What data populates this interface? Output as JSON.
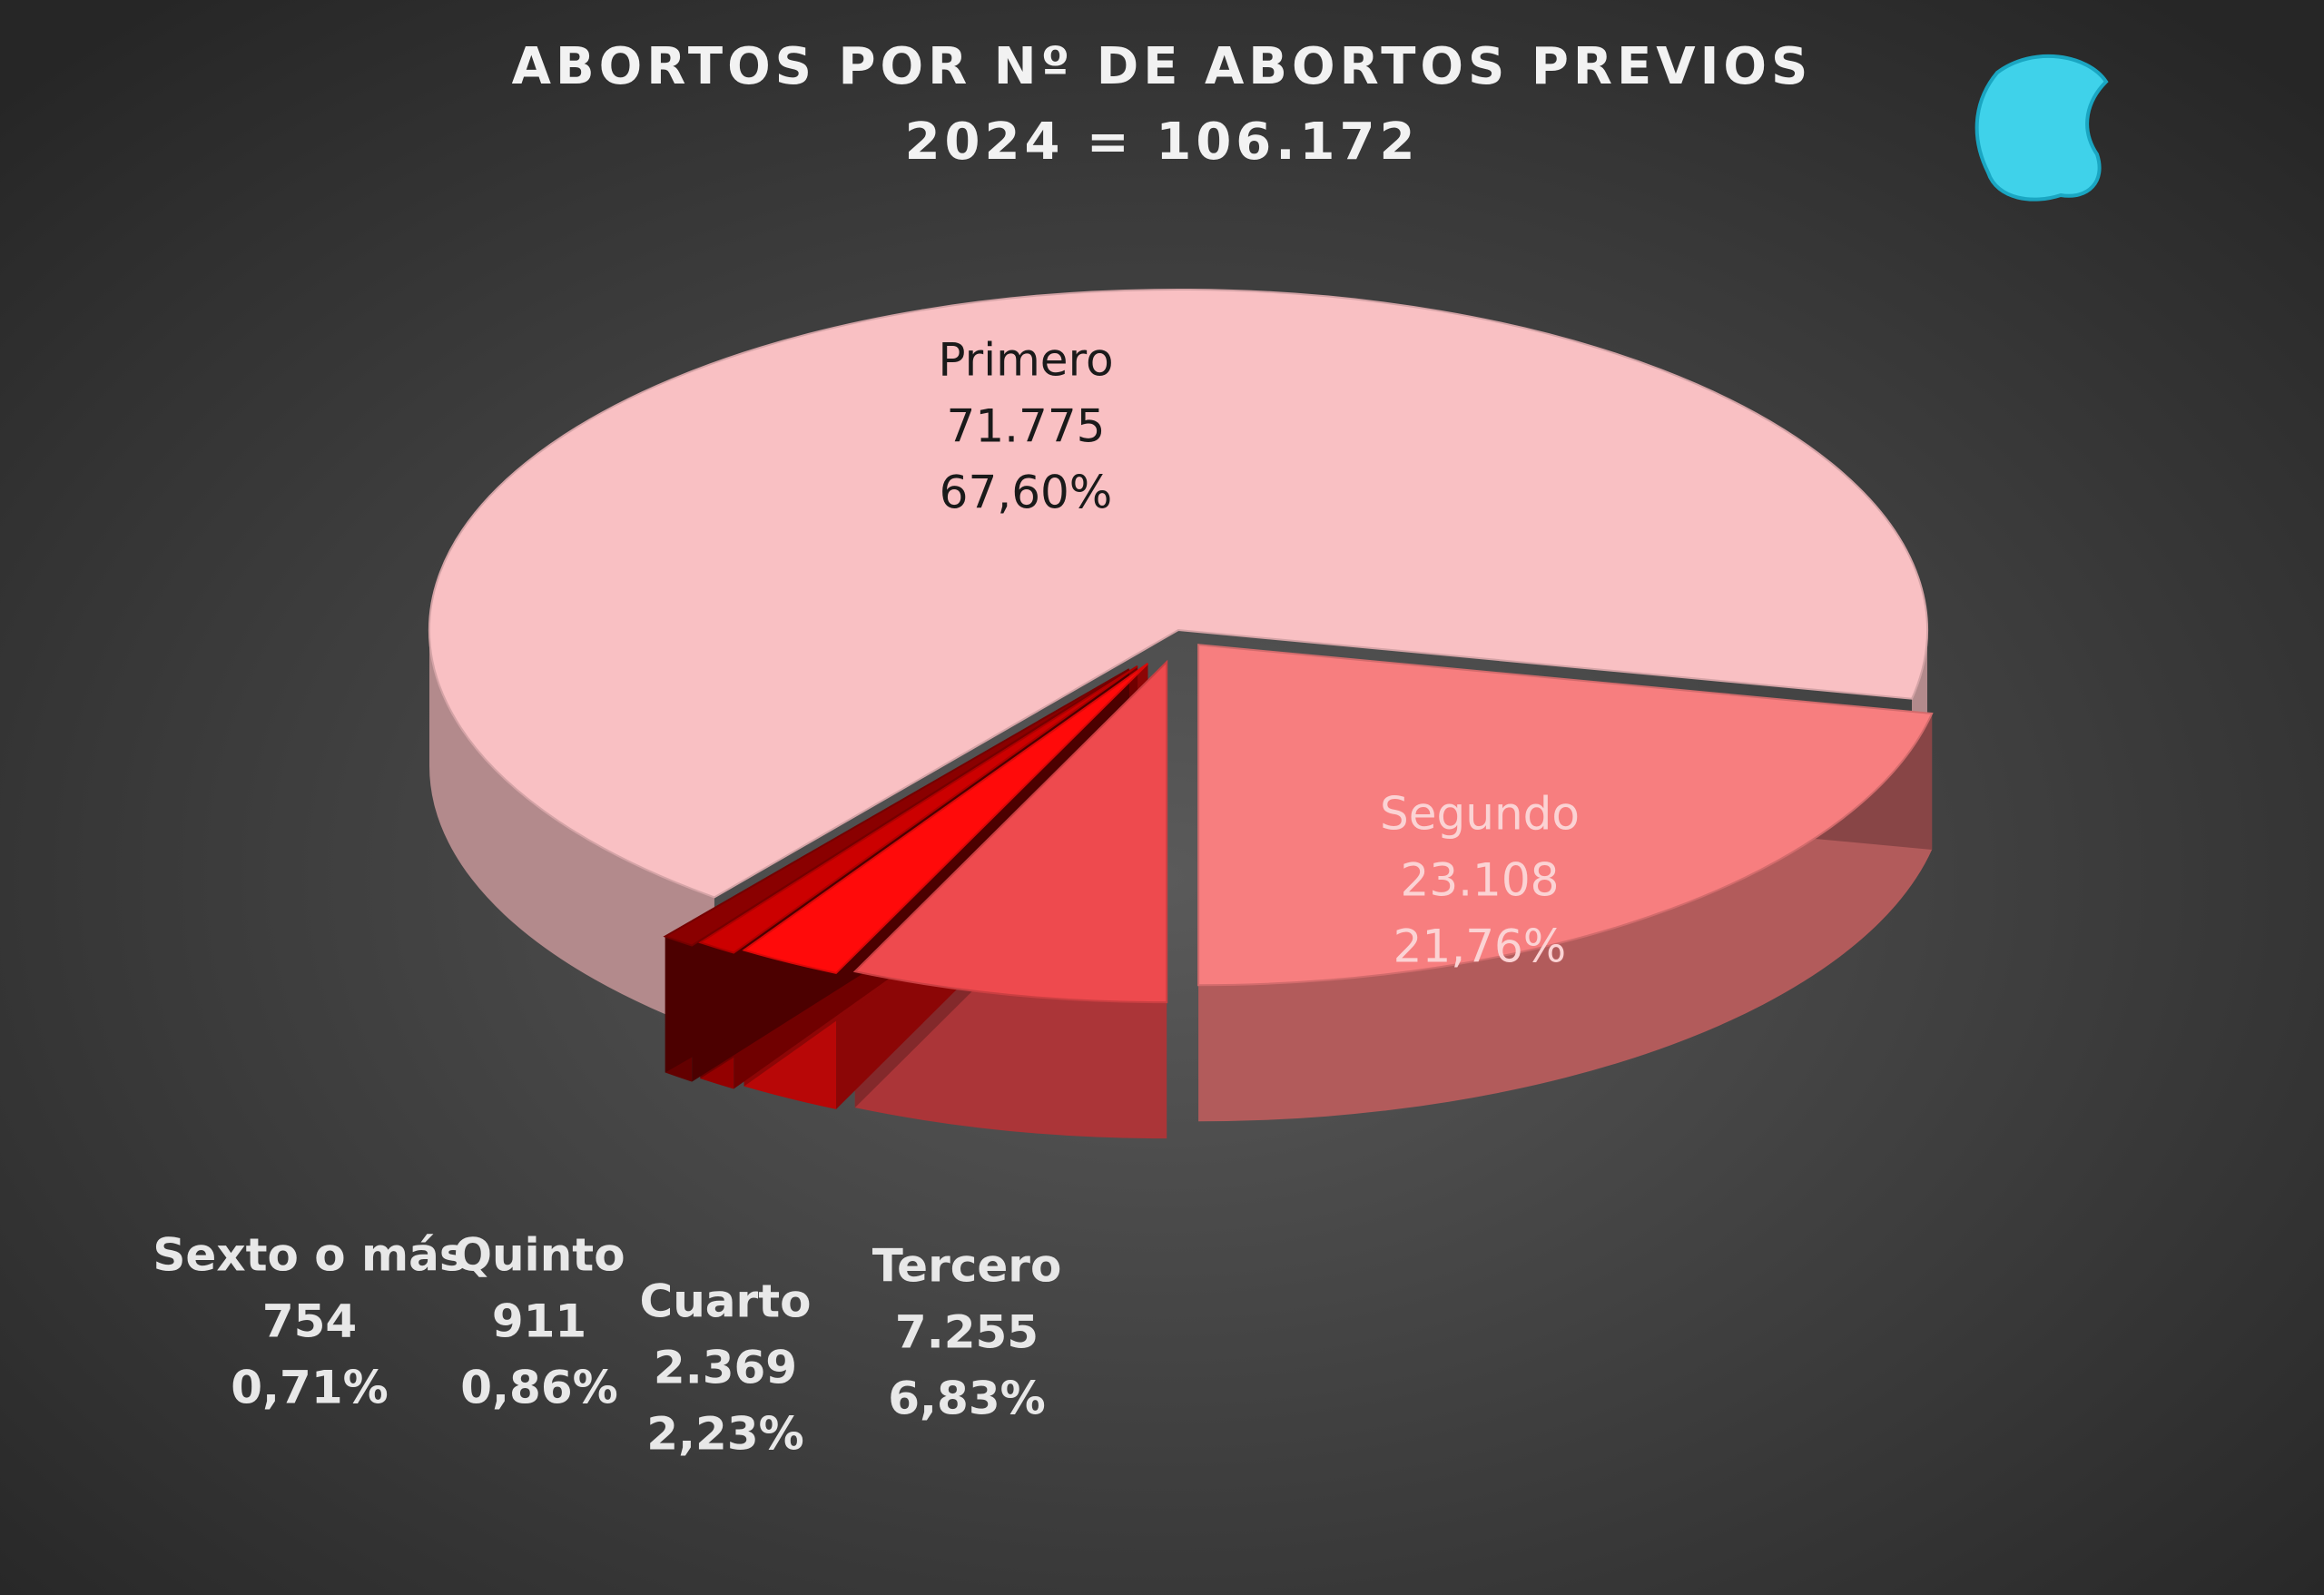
{
  "chart_data": {
    "type": "pie3d",
    "title": "ABORTOS POR Nº DE ABORTOS PREVIOS",
    "subtitle": "2024 = 106.172",
    "categories": [
      "Primero",
      "Segundo",
      "Tercero",
      "Cuarto",
      "Quinto",
      "Sexto o más"
    ],
    "values": [
      71775,
      23108,
      7255,
      2369,
      911,
      754
    ],
    "value_labels": [
      "71.775",
      "23.108",
      "7.255",
      "2.369",
      "911",
      "754"
    ],
    "percents": [
      67.6,
      21.76,
      6.83,
      2.23,
      0.86,
      0.71
    ],
    "percent_labels": [
      "67,60%",
      "21,76%",
      "6,83%",
      "2,23%",
      "0,86%",
      "0,71%"
    ],
    "colors": [
      "#f9c0c3",
      "#f77e7f",
      "#ee4a4e",
      "#ff0a0a",
      "#cc0000",
      "#8a0000"
    ]
  }
}
